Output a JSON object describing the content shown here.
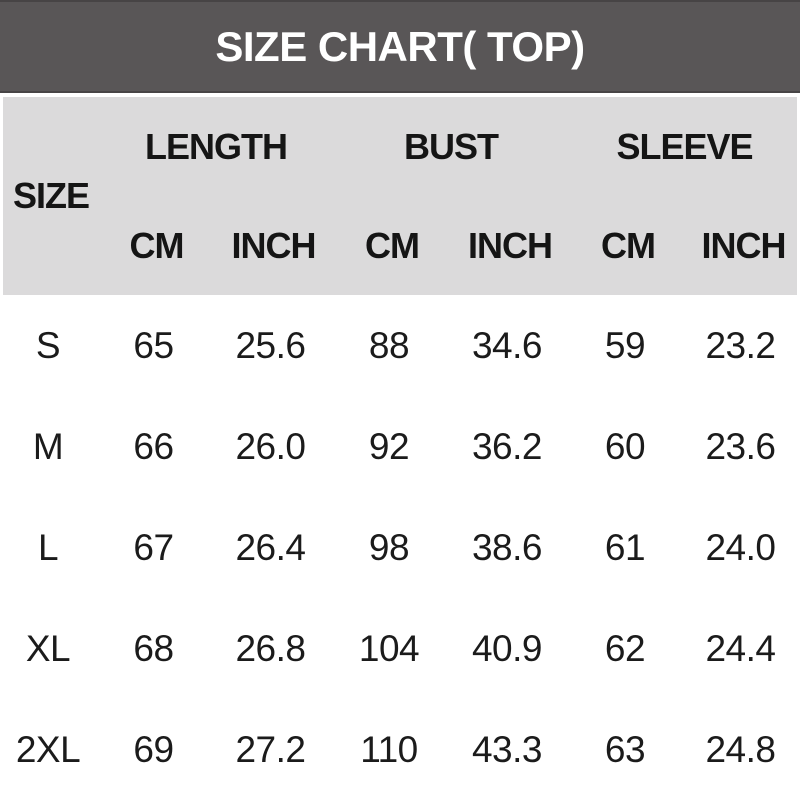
{
  "title": "SIZE CHART( TOP)",
  "colors": {
    "titlebar_bg": "#595657",
    "titlebar_text": "#ffffff",
    "header_bg": "#dbdadb",
    "body_bg": "#ffffff",
    "text": "#1b1b1b"
  },
  "table": {
    "corner_label": "SIZE",
    "groups": [
      {
        "label": "LENGTH"
      },
      {
        "label": "BUST"
      },
      {
        "label": "SLEEVE"
      }
    ],
    "sub_headers": [
      "CM",
      "INCH",
      "CM",
      "INCH",
      "CM",
      "INCH"
    ],
    "rows": [
      {
        "size": "S",
        "values": [
          "65",
          "25.6",
          "88",
          "34.6",
          "59",
          "23.2"
        ]
      },
      {
        "size": "M",
        "values": [
          "66",
          "26.0",
          "92",
          "36.2",
          "60",
          "23.6"
        ]
      },
      {
        "size": "L",
        "values": [
          "67",
          "26.4",
          "98",
          "38.6",
          "61",
          "24.0"
        ]
      },
      {
        "size": "XL",
        "values": [
          "68",
          "26.8",
          "104",
          "40.9",
          "62",
          "24.4"
        ]
      },
      {
        "size": "2XL",
        "values": [
          "69",
          "27.2",
          "110",
          "43.3",
          "63",
          "24.8"
        ]
      }
    ]
  },
  "chart_data": {
    "type": "table",
    "title": "SIZE CHART( TOP)",
    "columns": [
      "SIZE",
      "LENGTH CM",
      "LENGTH INCH",
      "BUST CM",
      "BUST INCH",
      "SLEEVE CM",
      "SLEEVE INCH"
    ],
    "rows": [
      [
        "S",
        65,
        25.6,
        88,
        34.6,
        59,
        23.2
      ],
      [
        "M",
        66,
        26.0,
        92,
        36.2,
        60,
        23.6
      ],
      [
        "L",
        67,
        26.4,
        98,
        38.6,
        61,
        24.0
      ],
      [
        "XL",
        68,
        26.8,
        104,
        40.9,
        62,
        24.4
      ],
      [
        "2XL",
        69,
        27.2,
        110,
        43.3,
        63,
        24.8
      ]
    ]
  }
}
